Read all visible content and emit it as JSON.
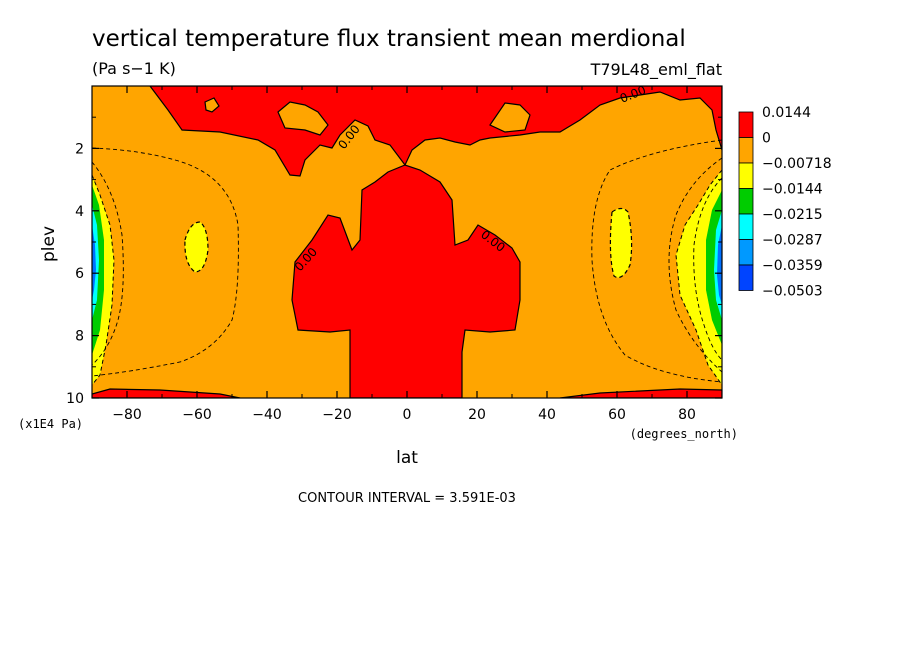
{
  "chart_data": {
    "type": "heatmap",
    "title": "vertical temperature flux transient mean merdional",
    "units": "(Pa s−1 K)",
    "run_label": "T79L48_eml_flat",
    "xlabel": "lat",
    "x_units": "(degrees_north)",
    "ylabel": "plev",
    "y_units": "(x1E4 Pa)",
    "xlim": [
      -90,
      90
    ],
    "ylim": [
      10,
      0
    ],
    "x_ticks": [
      -80,
      -60,
      -40,
      -20,
      0,
      20,
      40,
      60,
      80
    ],
    "y_ticks": [
      2,
      4,
      6,
      8,
      10
    ],
    "contour_interval_text": "CONTOUR INTERVAL = 3.591E-03",
    "contour_labels": [
      "0.00",
      "0.00",
      "0.00",
      "0.00"
    ],
    "colorbar": {
      "levels": [
        "0.0144",
        "0",
        "−0.00718",
        "−0.0144",
        "−0.0215",
        "−0.0287",
        "−0.0359",
        "−0.0503"
      ],
      "colors": [
        "#ff0000",
        "#ffa500",
        "#ffff00",
        "#00cc00",
        "#00ffff",
        "#0099ff",
        "#0044ff"
      ]
    },
    "regions": {
      "positive_color": "#ff0000",
      "neutral_color": "#ffa500",
      "weak_negative_color": "#ffff00"
    }
  }
}
